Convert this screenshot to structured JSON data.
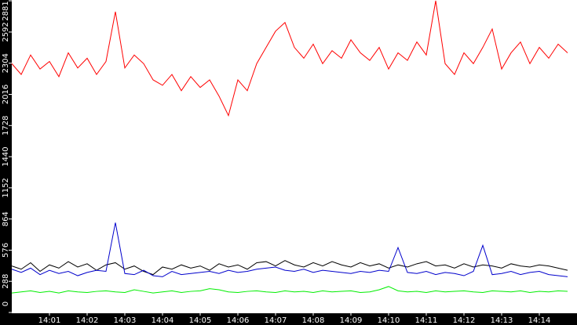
{
  "chart_data": {
    "type": "line",
    "x": [
      0,
      0.25,
      0.5,
      0.75,
      1,
      1.25,
      1.5,
      1.75,
      2,
      2.25,
      2.5,
      2.75,
      3,
      3.25,
      3.5,
      3.75,
      4,
      4.25,
      4.5,
      4.75,
      5,
      5.25,
      5.5,
      5.75,
      6,
      6.25,
      6.5,
      6.75,
      7,
      7.25,
      7.5,
      7.75,
      8,
      8.25,
      8.5,
      8.75,
      9,
      9.25,
      9.5,
      9.75,
      10,
      10.25,
      10.5,
      10.75,
      11,
      11.25,
      11.5,
      11.75,
      12,
      12.25,
      12.5,
      12.75,
      13,
      13.25,
      13.5,
      13.75,
      14,
      14.25,
      14.5,
      14.75
    ],
    "series": [
      {
        "color": "#ff0000",
        "values": [
          2300,
          2200,
          2380,
          2250,
          2320,
          2180,
          2400,
          2260,
          2350,
          2200,
          2320,
          2780,
          2260,
          2380,
          2300,
          2150,
          2100,
          2200,
          2050,
          2180,
          2080,
          2150,
          2000,
          1820,
          2150,
          2050,
          2300,
          2450,
          2600,
          2680,
          2450,
          2350,
          2480,
          2300,
          2420,
          2350,
          2520,
          2400,
          2330,
          2450,
          2250,
          2400,
          2330,
          2500,
          2380,
          2881,
          2300,
          2200,
          2400,
          2300,
          2450,
          2620,
          2250,
          2400,
          2500,
          2300,
          2450,
          2350,
          2480,
          2400
        ]
      },
      {
        "color": "#000000",
        "values": [
          430,
          400,
          460,
          380,
          440,
          410,
          470,
          420,
          450,
          390,
          440,
          460,
          400,
          430,
          380,
          350,
          420,
          400,
          440,
          410,
          430,
          390,
          450,
          420,
          440,
          400,
          460,
          470,
          430,
          480,
          440,
          420,
          460,
          430,
          470,
          440,
          420,
          460,
          430,
          450,
          410,
          440,
          420,
          450,
          470,
          430,
          440,
          410,
          450,
          420,
          440,
          430,
          410,
          450,
          430,
          420,
          440,
          430,
          410,
          390
        ]
      },
      {
        "color": "#0000cc",
        "values": [
          400,
          370,
          410,
          350,
          390,
          360,
          380,
          340,
          370,
          390,
          380,
          830,
          360,
          350,
          390,
          340,
          330,
          380,
          350,
          360,
          370,
          380,
          360,
          390,
          370,
          380,
          400,
          410,
          420,
          390,
          380,
          400,
          370,
          390,
          380,
          370,
          360,
          380,
          370,
          390,
          380,
          600,
          370,
          360,
          380,
          350,
          370,
          360,
          340,
          380,
          620,
          350,
          360,
          380,
          350,
          370,
          380,
          350,
          340,
          330
        ]
      },
      {
        "color": "#00ee00",
        "values": [
          180,
          190,
          200,
          185,
          195,
          180,
          200,
          190,
          185,
          195,
          200,
          190,
          185,
          210,
          195,
          180,
          190,
          200,
          185,
          195,
          200,
          220,
          210,
          190,
          185,
          195,
          200,
          190,
          185,
          200,
          190,
          195,
          185,
          200,
          190,
          195,
          200,
          185,
          190,
          210,
          240,
          200,
          190,
          195,
          185,
          200,
          190,
          195,
          200,
          190,
          185,
          200,
          195,
          190,
          200,
          185,
          195,
          190,
          200,
          195
        ]
      }
    ],
    "xlim": [
      0,
      15
    ],
    "xticks": [
      {
        "value": 1,
        "label": "14:01"
      },
      {
        "value": 2,
        "label": "14:02"
      },
      {
        "value": 3,
        "label": "14:03"
      },
      {
        "value": 4,
        "label": "14:04"
      },
      {
        "value": 5,
        "label": "14:05"
      },
      {
        "value": 6,
        "label": "14:06"
      },
      {
        "value": 7,
        "label": "14:07"
      },
      {
        "value": 8,
        "label": "14:08"
      },
      {
        "value": 9,
        "label": "14:09"
      },
      {
        "value": 10,
        "label": "14:10"
      },
      {
        "value": 11,
        "label": "14:11"
      },
      {
        "value": 12,
        "label": "14:12"
      },
      {
        "value": 13,
        "label": "14:13"
      },
      {
        "value": 14,
        "label": "14:14"
      }
    ],
    "ylim": [
      0,
      2881
    ],
    "yticks": [
      0,
      288,
      576,
      864,
      1152,
      1440,
      1728,
      2016,
      2304,
      2592,
      2881
    ]
  }
}
